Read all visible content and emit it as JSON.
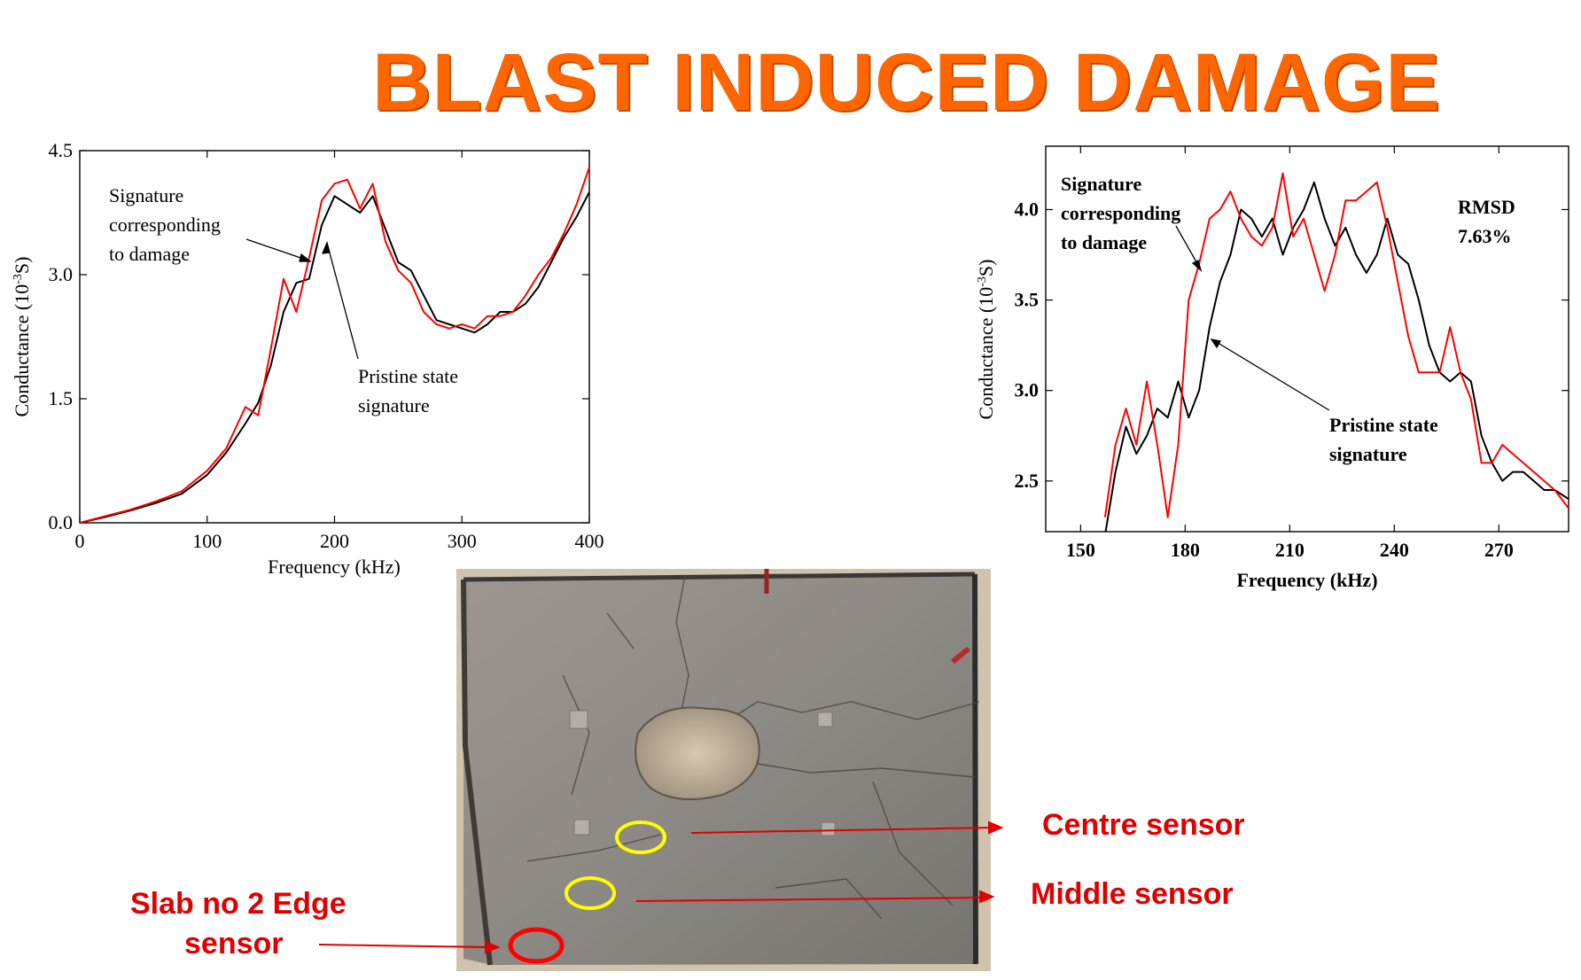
{
  "title": "BLAST INDUCED DAMAGE",
  "chart_data": [
    {
      "type": "line",
      "ylabel_prefix": "Conductance (10",
      "ylabel_sup": "-3",
      "ylabel_suffix": "S)",
      "xlabel": "Frequency (kHz)",
      "xlim": [
        0,
        400
      ],
      "ylim": [
        0,
        4.5
      ],
      "xticks": [
        "0",
        "100",
        "200",
        "300",
        "400"
      ],
      "yticks": [
        "0.0",
        "1.5",
        "3.0",
        "4.5"
      ],
      "annotations": {
        "damage": [
          "Signature",
          "corresponding",
          "to damage"
        ],
        "pristine": [
          "Pristine state",
          "signature"
        ]
      },
      "series": [
        {
          "color": "#000000",
          "x": [
            0,
            20,
            40,
            60,
            80,
            100,
            115,
            130,
            140,
            150,
            160,
            170,
            180,
            190,
            200,
            210,
            220,
            230,
            240,
            250,
            260,
            270,
            280,
            290,
            300,
            310,
            320,
            330,
            340,
            350,
            360,
            370,
            380,
            390,
            400
          ],
          "y": [
            0,
            0.07,
            0.15,
            0.24,
            0.35,
            0.58,
            0.85,
            1.2,
            1.45,
            1.9,
            2.55,
            2.9,
            2.95,
            3.6,
            3.95,
            3.85,
            3.75,
            3.95,
            3.55,
            3.15,
            3.05,
            2.75,
            2.45,
            2.4,
            2.35,
            2.3,
            2.4,
            2.55,
            2.55,
            2.65,
            2.85,
            3.15,
            3.45,
            3.7,
            4.0
          ]
        },
        {
          "color": "#ff0000",
          "x": [
            0,
            20,
            40,
            60,
            80,
            100,
            115,
            130,
            140,
            150,
            160,
            170,
            180,
            190,
            200,
            210,
            220,
            230,
            240,
            250,
            260,
            270,
            280,
            290,
            300,
            310,
            320,
            330,
            340,
            350,
            360,
            370,
            380,
            390,
            400
          ],
          "y": [
            0,
            0.08,
            0.16,
            0.26,
            0.38,
            0.63,
            0.9,
            1.4,
            1.3,
            2.1,
            2.95,
            2.55,
            3.2,
            3.9,
            4.1,
            4.15,
            3.8,
            4.1,
            3.4,
            3.05,
            2.9,
            2.55,
            2.4,
            2.35,
            2.4,
            2.35,
            2.5,
            2.5,
            2.55,
            2.75,
            3.0,
            3.2,
            3.5,
            3.85,
            4.3
          ]
        }
      ]
    },
    {
      "type": "line",
      "ylabel_prefix": "Conductance (10",
      "ylabel_sup": "-3",
      "ylabel_suffix": "S)",
      "xlabel": "Frequency (kHz)",
      "xlim": [
        140,
        290
      ],
      "ylim": [
        2.22,
        4.35
      ],
      "xticks": [
        "150",
        "180",
        "210",
        "240",
        "270"
      ],
      "xtick_values": [
        150,
        180,
        210,
        240,
        270
      ],
      "yticks": [
        "2.5",
        "3.0",
        "3.5",
        "4.0"
      ],
      "ytick_values": [
        2.5,
        3.0,
        3.5,
        4.0
      ],
      "annotations": {
        "damage": [
          "Signature",
          "corresponding",
          "to damage"
        ],
        "pristine": [
          "Pristine state",
          "signature"
        ],
        "rmsd": [
          "RMSD",
          "7.63%"
        ]
      },
      "series": [
        {
          "color": "#000000",
          "x": [
            157,
            160,
            163,
            166,
            169,
            172,
            175,
            178,
            181,
            184,
            187,
            190,
            193,
            196,
            199,
            202,
            205,
            208,
            211,
            214,
            217,
            220,
            223,
            226,
            229,
            232,
            235,
            238,
            241,
            244,
            247,
            250,
            253,
            256,
            259,
            262,
            265,
            268,
            271,
            274,
            277,
            280,
            283,
            286,
            290
          ],
          "y": [
            2.2,
            2.55,
            2.8,
            2.65,
            2.75,
            2.9,
            2.85,
            3.05,
            2.85,
            3.0,
            3.35,
            3.6,
            3.75,
            4.0,
            3.95,
            3.85,
            3.95,
            3.75,
            3.9,
            4.0,
            4.15,
            3.95,
            3.8,
            3.9,
            3.75,
            3.65,
            3.75,
            3.95,
            3.75,
            3.7,
            3.5,
            3.25,
            3.1,
            3.05,
            3.1,
            3.05,
            2.75,
            2.6,
            2.5,
            2.55,
            2.55,
            2.5,
            2.45,
            2.45,
            2.4
          ]
        },
        {
          "color": "#ff0000",
          "x": [
            157,
            160,
            163,
            166,
            169,
            172,
            175,
            178,
            181,
            184,
            187,
            190,
            193,
            196,
            199,
            202,
            205,
            208,
            211,
            214,
            217,
            220,
            223,
            226,
            229,
            232,
            235,
            238,
            241,
            244,
            247,
            250,
            253,
            256,
            259,
            262,
            265,
            268,
            271,
            274,
            277,
            280,
            283,
            286,
            290
          ],
          "y": [
            2.3,
            2.7,
            2.9,
            2.7,
            3.05,
            2.7,
            2.3,
            2.7,
            3.5,
            3.7,
            3.95,
            4.0,
            4.1,
            3.95,
            3.85,
            3.8,
            3.9,
            4.2,
            3.85,
            3.95,
            3.75,
            3.55,
            3.75,
            4.05,
            4.05,
            4.1,
            4.15,
            3.9,
            3.6,
            3.3,
            3.1,
            3.1,
            3.1,
            3.35,
            3.1,
            2.95,
            2.6,
            2.6,
            2.7,
            2.65,
            2.6,
            2.55,
            2.5,
            2.45,
            2.35
          ]
        }
      ]
    }
  ],
  "photo": {
    "labels": {
      "centre": "Centre sensor",
      "middle": "Middle sensor",
      "edge_line1": "Slab no 2 Edge",
      "edge_line2": "sensor"
    },
    "colors": {
      "label": "#e00000",
      "marker_yellow": "#ffff00",
      "marker_red": "#ff0000"
    }
  }
}
